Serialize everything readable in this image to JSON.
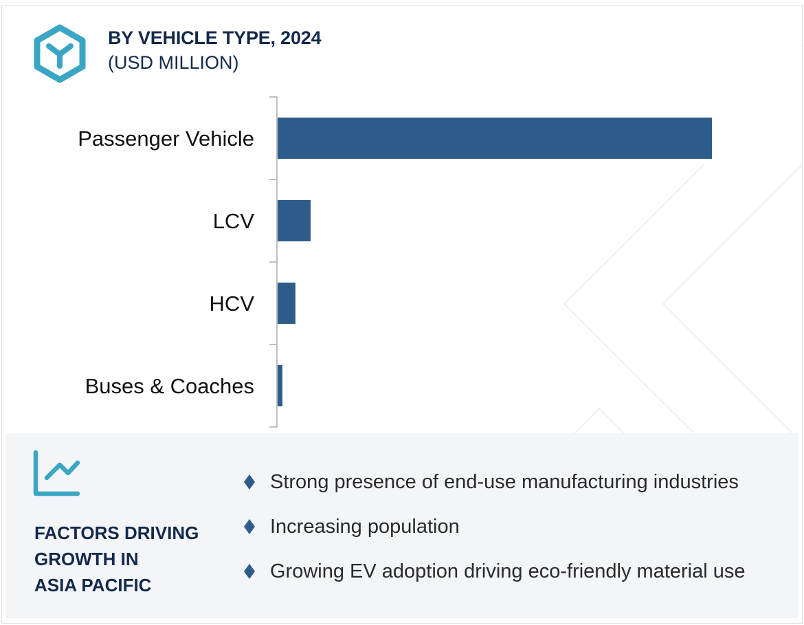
{
  "header": {
    "icon": "hexagon-y-logo-icon",
    "title": "BY VEHICLE TYPE, 2024",
    "subtitle": "(USD MILLION)"
  },
  "colors": {
    "bar": "#2d5c8a",
    "accent": "#3aa6c4",
    "title": "#13294b",
    "axis": "#bfbfbf",
    "panel_bg": "#f3f5f9"
  },
  "chart_data": {
    "type": "bar",
    "orientation": "horizontal",
    "title": "BY VEHICLE TYPE, 2024 (USD MILLION)",
    "xlabel": "",
    "ylabel": "",
    "categories": [
      "Passenger Vehicle",
      "LCV",
      "HCV",
      "Buses & Coaches"
    ],
    "values": [
      100,
      7.6,
      4.1,
      1.1
    ],
    "value_note": "No value axis or data labels shown; values are relative bar lengths (Passenger Vehicle = 100)",
    "xlim": [
      0,
      115
    ],
    "grid": false,
    "legend": "none"
  },
  "factors": {
    "icon": "trend-chart-icon",
    "title": "FACTORS DRIVING GROWTH IN ASIA PACIFIC",
    "title_lines": [
      "FACTORS DRIVING",
      "GROWTH IN",
      "ASIA PACIFIC"
    ],
    "bullets": [
      "Strong presence of end-use manufacturing industries",
      "Increasing population",
      "Growing EV adoption driving eco-friendly material use"
    ]
  }
}
